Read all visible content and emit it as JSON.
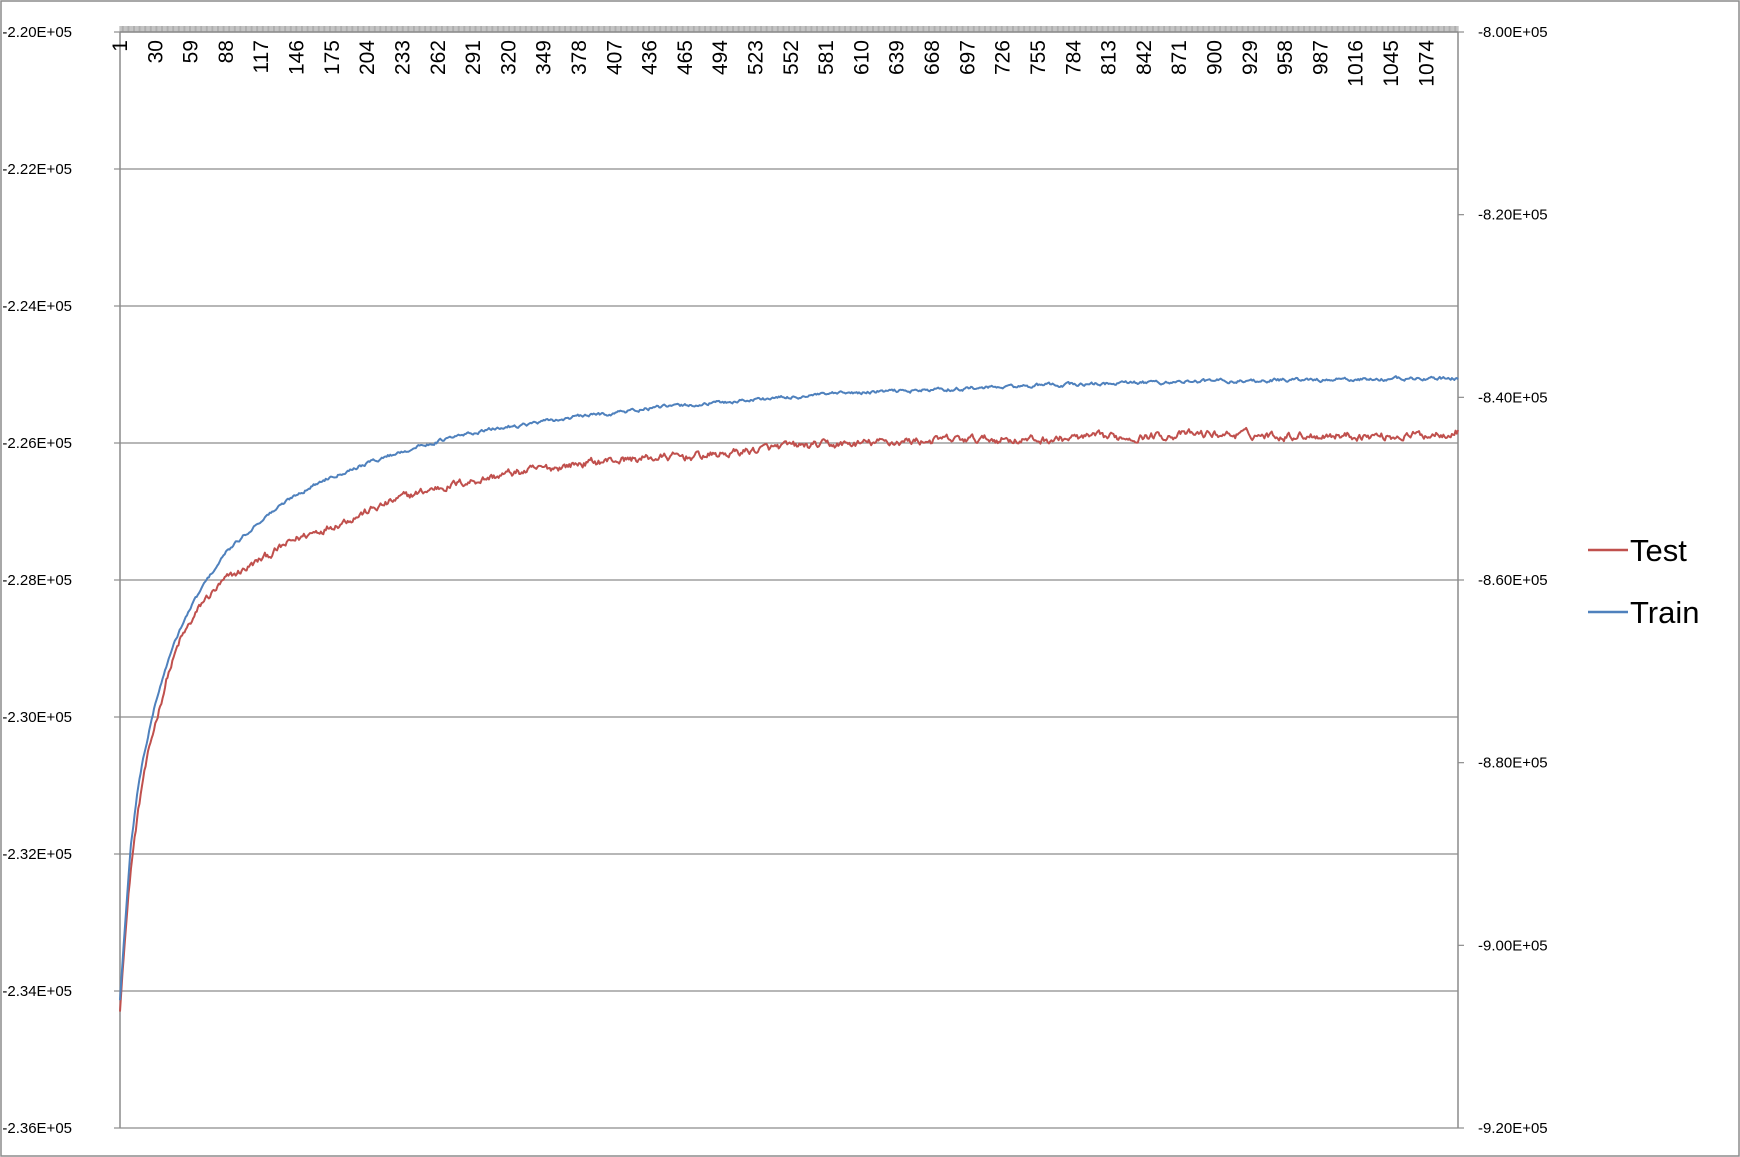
{
  "chart_data": {
    "type": "line",
    "title": "",
    "xlabel": "",
    "ylabel": "",
    "x_range": [
      1,
      1100
    ],
    "x_tick_labels": [
      "1",
      "30",
      "59",
      "88",
      "117",
      "146",
      "175",
      "204",
      "233",
      "262",
      "291",
      "320",
      "349",
      "378",
      "407",
      "436",
      "465",
      "494",
      "523",
      "552",
      "581",
      "610",
      "639",
      "668",
      "697",
      "726",
      "755",
      "784",
      "813",
      "842",
      "871",
      "900",
      "929",
      "958",
      "987",
      "1016",
      "1045",
      "1074"
    ],
    "y_left": {
      "min": -236000,
      "max": -220000,
      "step": 2000,
      "tick_labels": [
        "-2.20E+05",
        "-2.22E+05",
        "-2.24E+05",
        "-2.26E+05",
        "-2.28E+05",
        "-2.30E+05",
        "-2.32E+05",
        "-2.34E+05",
        "-2.36E+05"
      ]
    },
    "y_right": {
      "min": -920000,
      "max": -800000,
      "step": 20000,
      "tick_labels": [
        "-8.00E+05",
        "-8.20E+05",
        "-8.40E+05",
        "-8.60E+05",
        "-8.80E+05",
        "-9.00E+05",
        "-9.20E+05"
      ]
    },
    "grid": true,
    "legend_position": "right",
    "series": [
      {
        "name": "Test",
        "axis": "left",
        "color": "#C0504D",
        "points": [
          [
            1,
            -234300
          ],
          [
            5,
            -233200
          ],
          [
            10,
            -232200
          ],
          [
            15,
            -231500
          ],
          [
            20,
            -230900
          ],
          [
            30,
            -230100
          ],
          [
            40,
            -229400
          ],
          [
            50,
            -228900
          ],
          [
            60,
            -228600
          ],
          [
            70,
            -228300
          ],
          [
            88,
            -228000
          ],
          [
            117,
            -227700
          ],
          [
            146,
            -227400
          ],
          [
            175,
            -227200
          ],
          [
            204,
            -227000
          ],
          [
            233,
            -226800
          ],
          [
            262,
            -226650
          ],
          [
            291,
            -226550
          ],
          [
            320,
            -226450
          ],
          [
            349,
            -226380
          ],
          [
            378,
            -226300
          ],
          [
            407,
            -226250
          ],
          [
            436,
            -226220
          ],
          [
            465,
            -226200
          ],
          [
            494,
            -226170
          ],
          [
            523,
            -226100
          ],
          [
            552,
            -226050
          ],
          [
            581,
            -226030
          ],
          [
            610,
            -226010
          ],
          [
            639,
            -225980
          ],
          [
            668,
            -225960
          ],
          [
            697,
            -225950
          ],
          [
            726,
            -225940
          ],
          [
            755,
            -225960
          ],
          [
            784,
            -225930
          ],
          [
            813,
            -225920
          ],
          [
            842,
            -225900
          ],
          [
            871,
            -225880
          ],
          [
            900,
            -225870
          ],
          [
            929,
            -225880
          ],
          [
            958,
            -225890
          ],
          [
            987,
            -225880
          ],
          [
            1016,
            -225890
          ],
          [
            1045,
            -225900
          ],
          [
            1074,
            -225880
          ],
          [
            1100,
            -225820
          ]
        ]
      },
      {
        "name": "Train",
        "axis": "right",
        "color": "#4F81BD",
        "points": [
          [
            1,
            -906000
          ],
          [
            5,
            -898000
          ],
          [
            10,
            -889000
          ],
          [
            15,
            -883500
          ],
          [
            20,
            -879500
          ],
          [
            30,
            -873500
          ],
          [
            40,
            -869000
          ],
          [
            50,
            -865500
          ],
          [
            60,
            -862800
          ],
          [
            70,
            -860500
          ],
          [
            88,
            -857000
          ],
          [
            117,
            -853400
          ],
          [
            146,
            -850600
          ],
          [
            175,
            -848600
          ],
          [
            204,
            -847200
          ],
          [
            233,
            -845900
          ],
          [
            262,
            -844800
          ],
          [
            291,
            -843900
          ],
          [
            320,
            -843200
          ],
          [
            349,
            -842700
          ],
          [
            378,
            -842100
          ],
          [
            407,
            -841700
          ],
          [
            436,
            -841200
          ],
          [
            465,
            -840900
          ],
          [
            494,
            -840600
          ],
          [
            523,
            -840200
          ],
          [
            552,
            -840000
          ],
          [
            581,
            -839700
          ],
          [
            610,
            -839500
          ],
          [
            639,
            -839300
          ],
          [
            668,
            -839200
          ],
          [
            697,
            -839000
          ],
          [
            726,
            -838900
          ],
          [
            755,
            -838700
          ],
          [
            784,
            -838600
          ],
          [
            813,
            -838500
          ],
          [
            842,
            -838400
          ],
          [
            871,
            -838300
          ],
          [
            900,
            -838200
          ],
          [
            929,
            -838200
          ],
          [
            958,
            -838100
          ],
          [
            987,
            -838100
          ],
          [
            1016,
            -838050
          ],
          [
            1045,
            -838000
          ],
          [
            1074,
            -837950
          ],
          [
            1100,
            -837900
          ]
        ]
      }
    ]
  }
}
